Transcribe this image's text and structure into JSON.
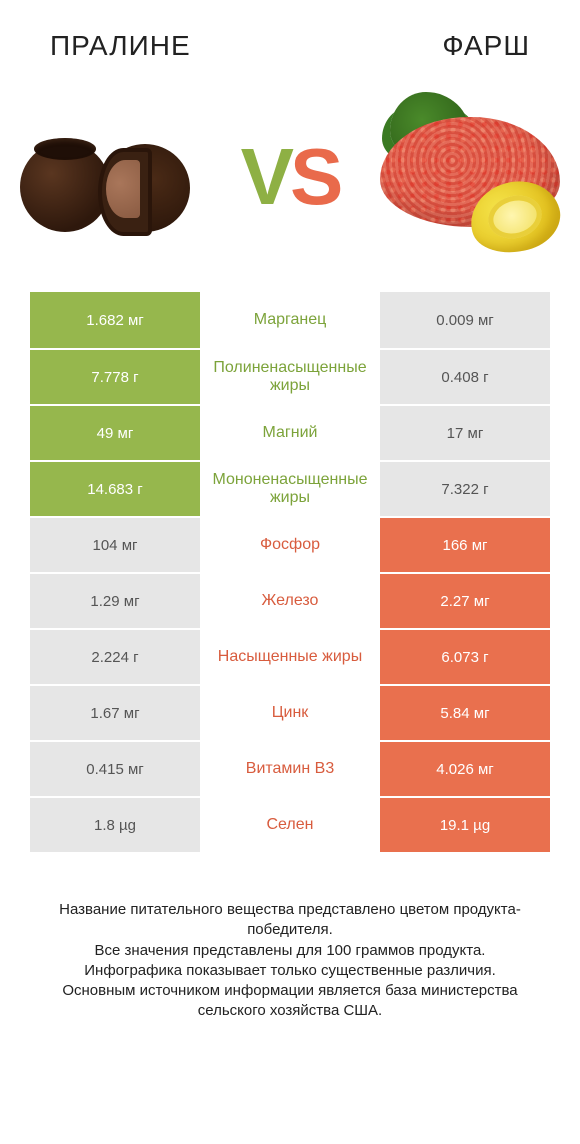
{
  "colors": {
    "left_bg": "#96b74d",
    "right_bg": "#e9704e",
    "neutral_bg": "#e6e6e6",
    "left_text": "#7ca33a",
    "right_text": "#d85c3e",
    "page_bg": "#ffffff"
  },
  "header": {
    "left_title": "ПРАЛИНЕ",
    "right_title": "ФАРШ",
    "vs_v": "V",
    "vs_s": "S"
  },
  "rows": [
    {
      "nutrient": "Марганец",
      "left": "1.682 мг",
      "right": "0.009 мг",
      "winner": "left"
    },
    {
      "nutrient": "Полиненасыщенные жиры",
      "left": "7.778 г",
      "right": "0.408 г",
      "winner": "left"
    },
    {
      "nutrient": "Магний",
      "left": "49 мг",
      "right": "17 мг",
      "winner": "left"
    },
    {
      "nutrient": "Мононенасыщенные жиры",
      "left": "14.683 г",
      "right": "7.322 г",
      "winner": "left"
    },
    {
      "nutrient": "Фосфор",
      "left": "104 мг",
      "right": "166 мг",
      "winner": "right"
    },
    {
      "nutrient": "Железо",
      "left": "1.29 мг",
      "right": "2.27 мг",
      "winner": "right"
    },
    {
      "nutrient": "Насыщенные жиры",
      "left": "2.224 г",
      "right": "6.073 г",
      "winner": "right"
    },
    {
      "nutrient": "Цинк",
      "left": "1.67 мг",
      "right": "5.84 мг",
      "winner": "right"
    },
    {
      "nutrient": "Витамин B3",
      "left": "0.415 мг",
      "right": "4.026 мг",
      "winner": "right"
    },
    {
      "nutrient": "Селен",
      "left": "1.8 µg",
      "right": "19.1 µg",
      "winner": "right"
    }
  ],
  "footer": {
    "l1": "Название питательного вещества представлено цветом продукта-победителя.",
    "l2": "Все значения представлены для 100 граммов продукта.",
    "l3": "Инфографика показывает только существенные различия.",
    "l4": "Основным источником информации является база министерства сельского хозяйства США."
  }
}
